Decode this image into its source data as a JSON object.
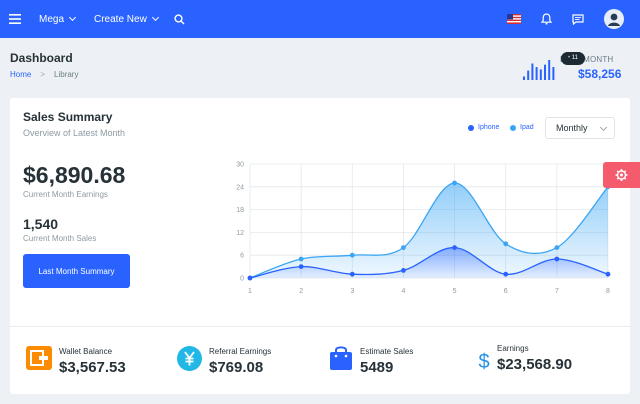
{
  "topbar": {
    "menu": "Mega",
    "create": "Create New"
  },
  "breadcrumb": {
    "title": "Dashboard",
    "home": "Home",
    "current": "Library"
  },
  "last_month": {
    "label": "LAST MONTH",
    "value": "$58,256",
    "tooltip": "11",
    "bars": [
      3,
      8,
      14,
      11,
      9,
      13,
      17,
      11
    ]
  },
  "summary": {
    "title": "Sales Summary",
    "subtitle": "Overview of Latest Month",
    "legend": [
      {
        "name": "Iphone",
        "color": "#2962ff"
      },
      {
        "name": "Ipad",
        "color": "#3aa5f5"
      }
    ],
    "period": "Monthly",
    "earnings_value": "$6,890.68",
    "earnings_label": "Current Month Earnings",
    "sales_value": "1,540",
    "sales_label": "Current Month Sales",
    "button": "Last Month Summary"
  },
  "chart_data": {
    "type": "area",
    "x": [
      1,
      2,
      3,
      4,
      5,
      6,
      7,
      8
    ],
    "series": [
      {
        "name": "Iphone",
        "values": [
          0,
          3,
          1,
          2,
          8,
          1,
          5,
          1
        ]
      },
      {
        "name": "Ipad",
        "values": [
          0,
          5,
          6,
          8,
          25,
          9,
          8,
          24
        ]
      }
    ],
    "ylim": [
      0,
      30
    ],
    "yticks": [
      0,
      6,
      12,
      18,
      24,
      30
    ],
    "grid": true
  },
  "stats": [
    {
      "label": "Wallet Balance",
      "value": "$3,567.53"
    },
    {
      "label": "Referral Earnings",
      "value": "$769.08"
    },
    {
      "label": "Estimate Sales",
      "value": "5489"
    },
    {
      "label": "Earnings",
      "value": "$23,568.90"
    }
  ]
}
